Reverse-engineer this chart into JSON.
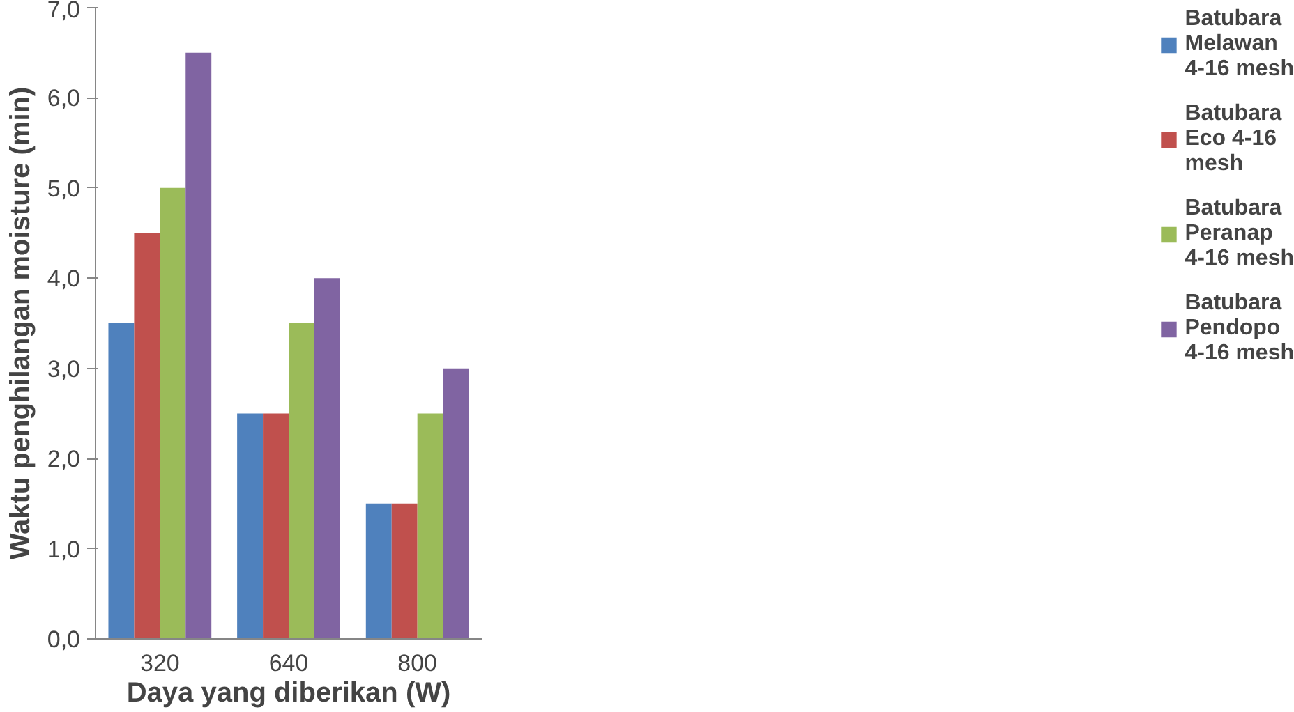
{
  "chart_data": {
    "type": "bar",
    "xlabel": "Daya yang diberikan (W)",
    "ylabel": "Waktu penghilangan moisture (min)",
    "categories": [
      "320",
      "640",
      "800"
    ],
    "series": [
      {
        "name": "Batubara Melawan 4-16 mesh",
        "color": "#4f81bd",
        "values": [
          3.5,
          2.5,
          1.5
        ]
      },
      {
        "name": "Batubara Eco 4-16 mesh",
        "color": "#c0504d",
        "values": [
          4.5,
          2.5,
          1.5
        ]
      },
      {
        "name": "Batubara Peranap 4-16 mesh",
        "color": "#9bbb59",
        "values": [
          5.0,
          3.5,
          2.5
        ]
      },
      {
        "name": "Batubara Pendopo 4-16 mesh",
        "color": "#8064a2",
        "values": [
          6.5,
          4.0,
          3.0
        ]
      }
    ],
    "ylim": [
      0,
      7
    ],
    "yticks": [
      {
        "value": 0,
        "label": "0,0"
      },
      {
        "value": 1,
        "label": "1,0"
      },
      {
        "value": 2,
        "label": "2,0"
      },
      {
        "value": 3,
        "label": "3,0"
      },
      {
        "value": 4,
        "label": "4,0"
      },
      {
        "value": 5,
        "label": "5,0"
      },
      {
        "value": 6,
        "label": "6,0"
      },
      {
        "value": 7,
        "label": "7,0"
      }
    ],
    "grid": false,
    "legend": "right"
  }
}
